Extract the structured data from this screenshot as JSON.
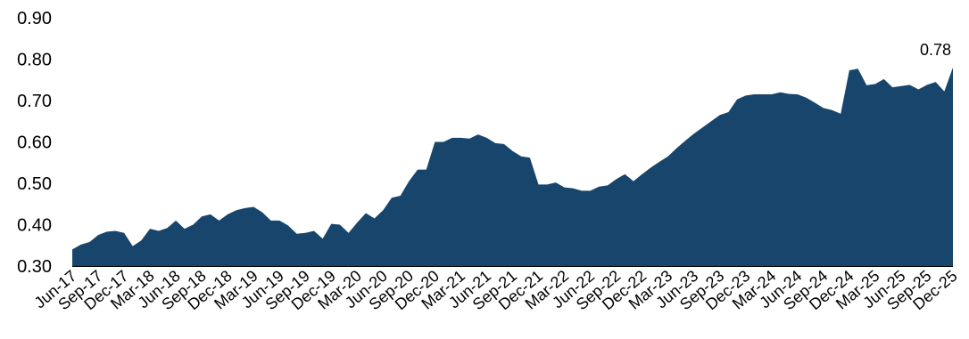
{
  "chart_data": {
    "type": "area",
    "title": "",
    "xlabel": "",
    "ylabel": "",
    "ylim": [
      0.3,
      0.9
    ],
    "yticks": [
      "0.30",
      "0.40",
      "0.50",
      "0.60",
      "0.70",
      "0.80",
      "0.90"
    ],
    "grid": false,
    "color": "#17456C",
    "x_tick_labels": [
      "Jun-17",
      "Sep-17",
      "Dec-17",
      "Mar-18",
      "Jun-18",
      "Sep-18",
      "Dec-18",
      "Mar-19",
      "Jun-19",
      "Sep-19",
      "Dec-19",
      "Mar-20",
      "Jun-20",
      "Sep-20",
      "Dec-20",
      "Mar-21",
      "Jun-21",
      "Sep-21",
      "Dec-21",
      "Mar-22",
      "Jun-22",
      "Sep-22",
      "Dec-22",
      "Mar-23",
      "Jun-23",
      "Sep-23",
      "Dec-23",
      "Mar-24",
      "Jun-24",
      "Sep-24",
      "Dec-24",
      "Mar-25",
      "Jun-25",
      "Sep-25",
      "Dec-25"
    ],
    "x": [
      "Jun-17",
      "Jul-17",
      "Aug-17",
      "Sep-17",
      "Oct-17",
      "Nov-17",
      "Dec-17",
      "Jan-18",
      "Feb-18",
      "Mar-18",
      "Apr-18",
      "May-18",
      "Jun-18",
      "Jul-18",
      "Aug-18",
      "Sep-18",
      "Oct-18",
      "Nov-18",
      "Dec-18",
      "Jan-19",
      "Feb-19",
      "Mar-19",
      "Apr-19",
      "May-19",
      "Jun-19",
      "Jul-19",
      "Aug-19",
      "Sep-19",
      "Oct-19",
      "Nov-19",
      "Dec-19",
      "Jan-20",
      "Feb-20",
      "Mar-20",
      "Apr-20",
      "May-20",
      "Jun-20",
      "Jul-20",
      "Aug-20",
      "Sep-20",
      "Oct-20",
      "Nov-20",
      "Dec-20",
      "Jan-21",
      "Feb-21",
      "Mar-21",
      "Apr-21",
      "May-21",
      "Jun-21",
      "Jul-21",
      "Aug-21",
      "Sep-21",
      "Oct-21",
      "Nov-21",
      "Dec-21",
      "Jan-22",
      "Feb-22",
      "Mar-22",
      "Apr-22",
      "May-22",
      "Jun-22",
      "Jul-22",
      "Aug-22",
      "Sep-22",
      "Oct-22",
      "Nov-22",
      "Dec-22",
      "Jan-23",
      "Feb-23",
      "Mar-23",
      "Apr-23",
      "May-23",
      "Jun-23",
      "Jul-23",
      "Aug-23",
      "Sep-23",
      "Oct-23",
      "Nov-23",
      "Dec-23",
      "Jan-24",
      "Feb-24",
      "Mar-24",
      "Apr-24",
      "May-24",
      "Jun-24",
      "Jul-24",
      "Aug-24",
      "Sep-24",
      "Oct-24",
      "Nov-24",
      "Dec-24",
      "Jan-25",
      "Feb-25",
      "Mar-25",
      "Apr-25",
      "May-25",
      "Jun-25",
      "Jul-25",
      "Aug-25",
      "Sep-25",
      "Oct-25",
      "Nov-25",
      "Dec-25"
    ],
    "series": [
      {
        "values": [
          0.34,
          0.352,
          0.358,
          0.375,
          0.383,
          0.385,
          0.38,
          0.348,
          0.362,
          0.39,
          0.385,
          0.392,
          0.41,
          0.39,
          0.4,
          0.42,
          0.425,
          0.41,
          0.425,
          0.435,
          0.44,
          0.443,
          0.43,
          0.41,
          0.41,
          0.398,
          0.378,
          0.38,
          0.385,
          0.366,
          0.402,
          0.4,
          0.38,
          0.405,
          0.428,
          0.415,
          0.435,
          0.465,
          0.47,
          0.505,
          0.533,
          0.533,
          0.6,
          0.6,
          0.61,
          0.61,
          0.608,
          0.618,
          0.61,
          0.597,
          0.595,
          0.578,
          0.565,
          0.562,
          0.497,
          0.497,
          0.502,
          0.49,
          0.488,
          0.482,
          0.482,
          0.492,
          0.495,
          0.51,
          0.522,
          0.505,
          0.522,
          0.538,
          0.552,
          0.565,
          0.585,
          0.603,
          0.62,
          0.635,
          0.65,
          0.665,
          0.672,
          0.703,
          0.712,
          0.715,
          0.715,
          0.715,
          0.72,
          0.716,
          0.715,
          0.707,
          0.695,
          0.682,
          0.677,
          0.668,
          0.773,
          0.777,
          0.737,
          0.74,
          0.752,
          0.732,
          0.735,
          0.738,
          0.727,
          0.738,
          0.745,
          0.722,
          0.78
        ]
      }
    ],
    "data_labels": [
      {
        "index": 102,
        "text": "0.78"
      }
    ]
  }
}
